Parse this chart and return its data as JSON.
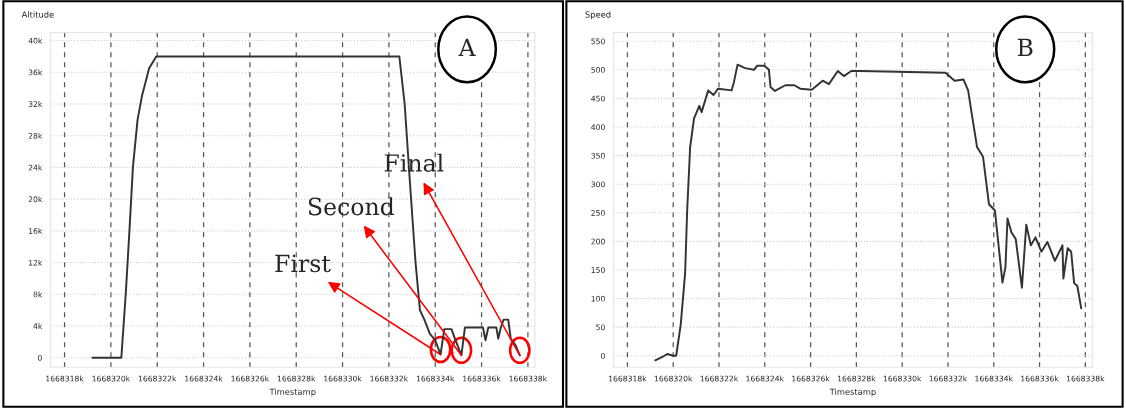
{
  "chart_data": [
    {
      "type": "line",
      "ylabel": "Altitude",
      "xlabel": "Timestamp",
      "grid": true,
      "marker": "none",
      "line_style": "solid",
      "xlim": [
        1668317.4,
        1668338.3
      ],
      "ylim": [
        -1.2,
        41
      ],
      "xticks": [
        {
          "value": 1668318,
          "label": "1668318k"
        },
        {
          "value": 1668320,
          "label": "1668320k"
        },
        {
          "value": 1668322,
          "label": "1668322k"
        },
        {
          "value": 1668324,
          "label": "1668324k"
        },
        {
          "value": 1668326,
          "label": "1668326k"
        },
        {
          "value": 1668328,
          "label": "1668328k"
        },
        {
          "value": 1668330,
          "label": "1668330k"
        },
        {
          "value": 1668332,
          "label": "1668332k"
        },
        {
          "value": 1668334,
          "label": "1668334k"
        },
        {
          "value": 1668336,
          "label": "1668336k"
        },
        {
          "value": 1668338,
          "label": "1668338k"
        }
      ],
      "yticks": [
        0,
        {
          "value": 4,
          "label": "4k"
        },
        {
          "value": 8,
          "label": "8k"
        },
        {
          "value": 12,
          "label": "12k"
        },
        {
          "value": 16,
          "label": "16k"
        },
        {
          "value": 20,
          "label": "20k"
        },
        {
          "value": 24,
          "label": "24k"
        },
        {
          "value": 28,
          "label": "28k"
        },
        {
          "value": 32,
          "label": "32k"
        },
        {
          "value": 36,
          "label": "36k"
        },
        {
          "value": 40,
          "label": "40k"
        }
      ],
      "series": [
        {
          "color": "#333333",
          "x": [
            1668319.2,
            1668320.45,
            1668320.64,
            1668320.8,
            1668320.95,
            1668321.15,
            1668321.34,
            1668321.65,
            1668321.96,
            1668332.45,
            1668332.68,
            1668332.91,
            1668333.15,
            1668333.34,
            1668333.53,
            1668333.77,
            1668334.0,
            1668334.23,
            1668334.39,
            1668334.7,
            1668334.85,
            1668335.13,
            1668335.28,
            1668336.06,
            1668336.17,
            1668336.29,
            1668336.64,
            1668336.72,
            1668336.83,
            1668336.95,
            1668337.15,
            1668337.26,
            1668337.46,
            1668337.65
          ],
          "values": [
            0,
            0,
            8,
            16,
            24,
            30,
            33,
            36.5,
            38,
            38,
            32,
            22,
            12,
            6,
            4.8,
            3,
            2.2,
            0.4,
            3.6,
            3.6,
            2.4,
            0.3,
            3.8,
            3.8,
            2.2,
            3.8,
            3.8,
            2.4,
            3.8,
            4.8,
            4.8,
            2.4,
            1.6,
            0.3
          ]
        }
      ],
      "annotations": [
        {
          "text": "First",
          "x": 1668334.23,
          "y": 0.4
        },
        {
          "text": "Second",
          "x": 1668335.13,
          "y": 0.3
        },
        {
          "text": "Final",
          "x": 1668337.65,
          "y": 0.3
        },
        "A"
      ]
    },
    {
      "type": "line",
      "ylabel": "Speed",
      "xlabel": "Timestamp",
      "grid": true,
      "marker": "none",
      "line_style": "solid",
      "xlim": [
        1668317.4,
        1668338.3
      ],
      "ylim": [
        -20,
        565
      ],
      "xticks": [
        {
          "value": 1668318,
          "label": "1668318k"
        },
        {
          "value": 1668320,
          "label": "1668320k"
        },
        {
          "value": 1668322,
          "label": "1668322k"
        },
        {
          "value": 1668324,
          "label": "1668324k"
        },
        {
          "value": 1668326,
          "label": "1668326k"
        },
        {
          "value": 1668328,
          "label": "1668328k"
        },
        {
          "value": 1668330,
          "label": "1668330k"
        },
        {
          "value": 1668332,
          "label": "1668332k"
        },
        {
          "value": 1668334,
          "label": "1668334k"
        },
        {
          "value": 1668336,
          "label": "1668336k"
        },
        {
          "value": 1668338,
          "label": "1668338k"
        }
      ],
      "yticks": [
        0,
        50,
        100,
        150,
        200,
        250,
        300,
        350,
        400,
        450,
        500,
        550
      ],
      "series": [
        {
          "color": "#333333",
          "x": [
            1668319.22,
            1668319.61,
            1668319.74,
            1668320.0,
            1668320.13,
            1668320.33,
            1668320.52,
            1668320.61,
            1668320.74,
            1668320.91,
            1668321.14,
            1668321.24,
            1668321.53,
            1668321.76,
            1668321.96,
            1668322.55,
            1668322.65,
            1668322.81,
            1668323.14,
            1668323.53,
            1668323.66,
            1668323.98,
            1668324.18,
            1668324.25,
            1668324.44,
            1668324.9,
            1668325.29,
            1668325.55,
            1668326.05,
            1668326.53,
            1668326.8,
            1668327.19,
            1668327.45,
            1668327.78,
            1668328.17,
            1668331.89,
            1668332.29,
            1668332.68,
            1668332.88,
            1668333.07,
            1668333.27,
            1668333.53,
            1668333.79,
            1668334.05,
            1668334.38,
            1668334.51,
            1668334.6,
            1668334.77,
            1668334.96,
            1668335.23,
            1668335.42,
            1668335.62,
            1668335.82,
            1668336.08,
            1668336.34,
            1668336.67,
            1668337.0,
            1668337.04,
            1668337.23,
            1668337.38,
            1668337.51,
            1668337.65,
            1668337.82
          ],
          "values": [
            -8,
            0,
            3,
            0,
            0,
            55,
            144,
            254,
            365,
            415,
            437,
            426,
            464,
            456,
            467,
            464,
            478,
            509,
            503,
            500,
            507,
            507,
            500,
            470,
            463,
            473,
            473,
            467,
            465,
            481,
            475,
            498,
            489,
            498,
            498,
            495,
            481,
            483,
            464,
            415,
            365,
            348,
            265,
            254,
            128,
            155,
            240,
            216,
            204,
            119,
            229,
            193,
            207,
            182,
            199,
            166,
            193,
            135,
            188,
            182,
            127,
            122,
            83
          ]
        }
      ],
      "annotations": [
        "B"
      ]
    }
  ]
}
